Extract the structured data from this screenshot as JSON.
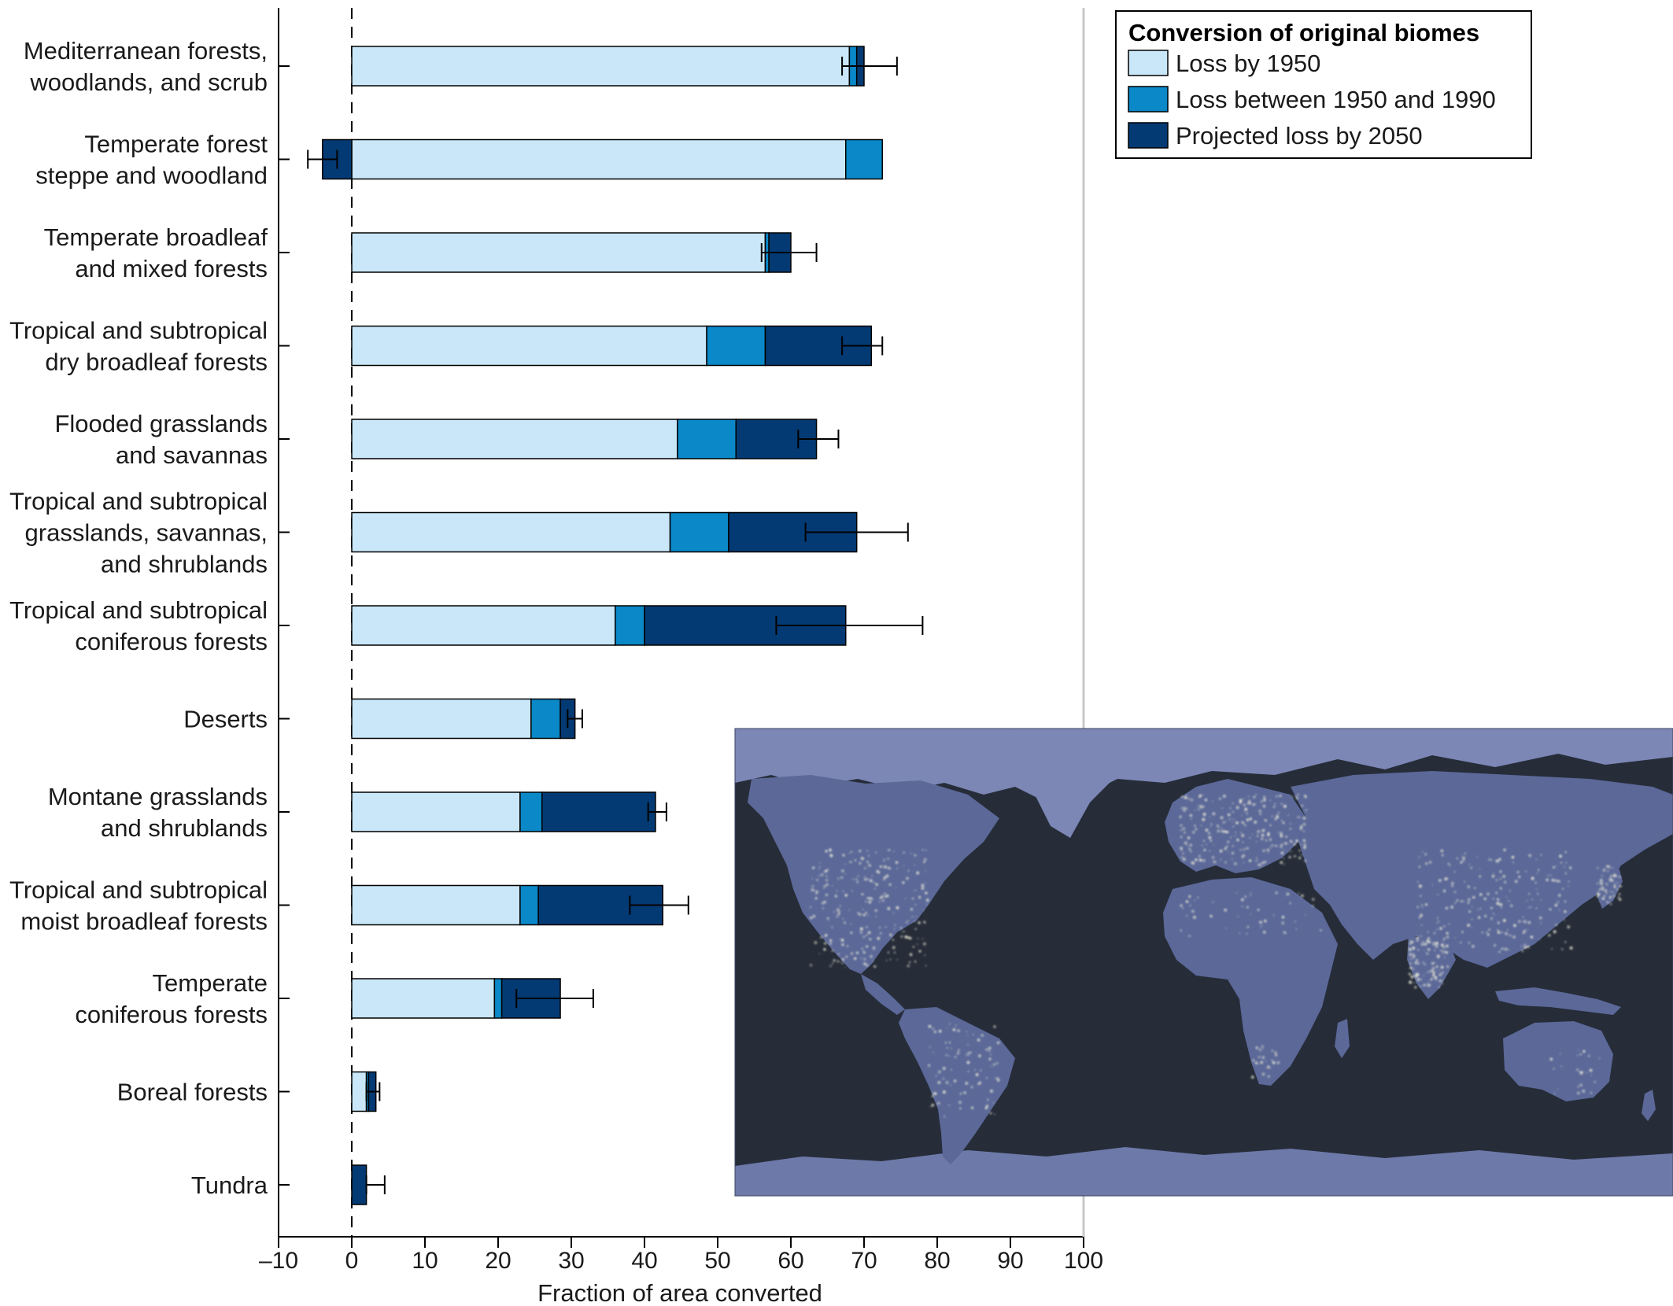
{
  "chart_data": {
    "type": "bar",
    "orientation": "horizontal",
    "stacked": true,
    "title": "",
    "xlabel": "Fraction of area converted",
    "ylabel": "",
    "xlim": [
      -10,
      100
    ],
    "xticks": [
      -10,
      0,
      10,
      20,
      30,
      40,
      50,
      60,
      70,
      80,
      90,
      100
    ],
    "xtick_labels": [
      "–10",
      "0",
      "10",
      "20",
      "30",
      "40",
      "50",
      "60",
      "70",
      "80",
      "90",
      "100"
    ],
    "grid": false,
    "legend": {
      "title": "Conversion of original biomes",
      "position": "top-right"
    },
    "categories": [
      [
        "Mediterranean forests,",
        "woodlands, and scrub"
      ],
      [
        "Temperate forest",
        "steppe and woodland"
      ],
      [
        "Temperate broadleaf",
        "and mixed forests"
      ],
      [
        "Tropical and subtropical",
        "dry broadleaf forests"
      ],
      [
        "Flooded grasslands",
        "and savannas"
      ],
      [
        "Tropical and subtropical",
        "grasslands, savannas,",
        "and shrublands"
      ],
      [
        "Tropical and subtropical",
        "coniferous forests"
      ],
      [
        "Deserts"
      ],
      [
        "Montane grasslands",
        "and shrublands"
      ],
      [
        "Tropical and subtropical",
        "moist broadleaf forests"
      ],
      [
        "Temperate",
        "coniferous forests"
      ],
      [
        "Boreal forests"
      ],
      [
        "Tundra"
      ]
    ],
    "series": [
      {
        "name": "Loss by 1950",
        "color": "#c9e7f8",
        "values": [
          68,
          67.5,
          56.5,
          48.5,
          44.5,
          43.5,
          36,
          24.5,
          23,
          23,
          19.5,
          2,
          0
        ]
      },
      {
        "name": "Loss between 1950 and 1990",
        "color": "#0a88c8",
        "values": [
          1,
          5,
          0.5,
          8,
          8,
          8,
          4,
          4,
          3,
          2.5,
          1,
          0.3,
          0
        ]
      },
      {
        "name": "Projected loss by 2050",
        "color": "#043a73",
        "values": [
          1,
          -4,
          3,
          14.5,
          11,
          17.5,
          27.5,
          2,
          15.5,
          17,
          8,
          1,
          2
        ]
      }
    ],
    "error_bars": [
      [
        67,
        74.5
      ],
      [
        -6,
        -2
      ],
      [
        56,
        63.5
      ],
      [
        67,
        72.5
      ],
      [
        61,
        66.5
      ],
      [
        62,
        76
      ],
      [
        58,
        78
      ],
      [
        29.5,
        31.5
      ],
      [
        40.5,
        43
      ],
      [
        38,
        46
      ],
      [
        22.5,
        33
      ],
      [
        2,
        3.8
      ],
      [
        2,
        4.5
      ]
    ]
  },
  "inset_image": {
    "description_icon": "world-map-night-lights-icon",
    "colors": {
      "ocean": "#262d39",
      "land": "#5b6898",
      "ice": "#7c87b6",
      "lights": "#f2f1dc"
    }
  }
}
